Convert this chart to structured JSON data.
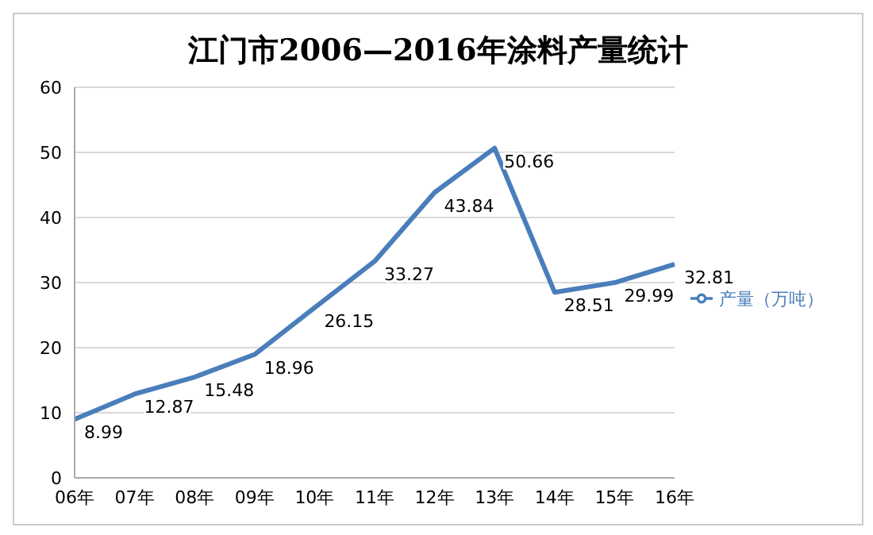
{
  "chart_data": {
    "type": "line",
    "title": "江门市2006—2016年涂料产量统计",
    "categories": [
      "06年",
      "07年",
      "08年",
      "09年",
      "10年",
      "11年",
      "12年",
      "13年",
      "14年",
      "15年",
      "16年"
    ],
    "series": [
      {
        "name": "产量（万吨）",
        "color": "#4a7ebb",
        "values": [
          8.99,
          12.87,
          15.48,
          18.96,
          26.15,
          33.27,
          43.84,
          50.66,
          28.51,
          29.99,
          32.81
        ]
      }
    ],
    "ylim": [
      0,
      60
    ],
    "yticks": [
      0,
      10,
      20,
      30,
      40,
      50,
      60
    ],
    "grid": "y",
    "legend": "right",
    "data_labels": true,
    "marker": "none",
    "line_style": "solid"
  }
}
